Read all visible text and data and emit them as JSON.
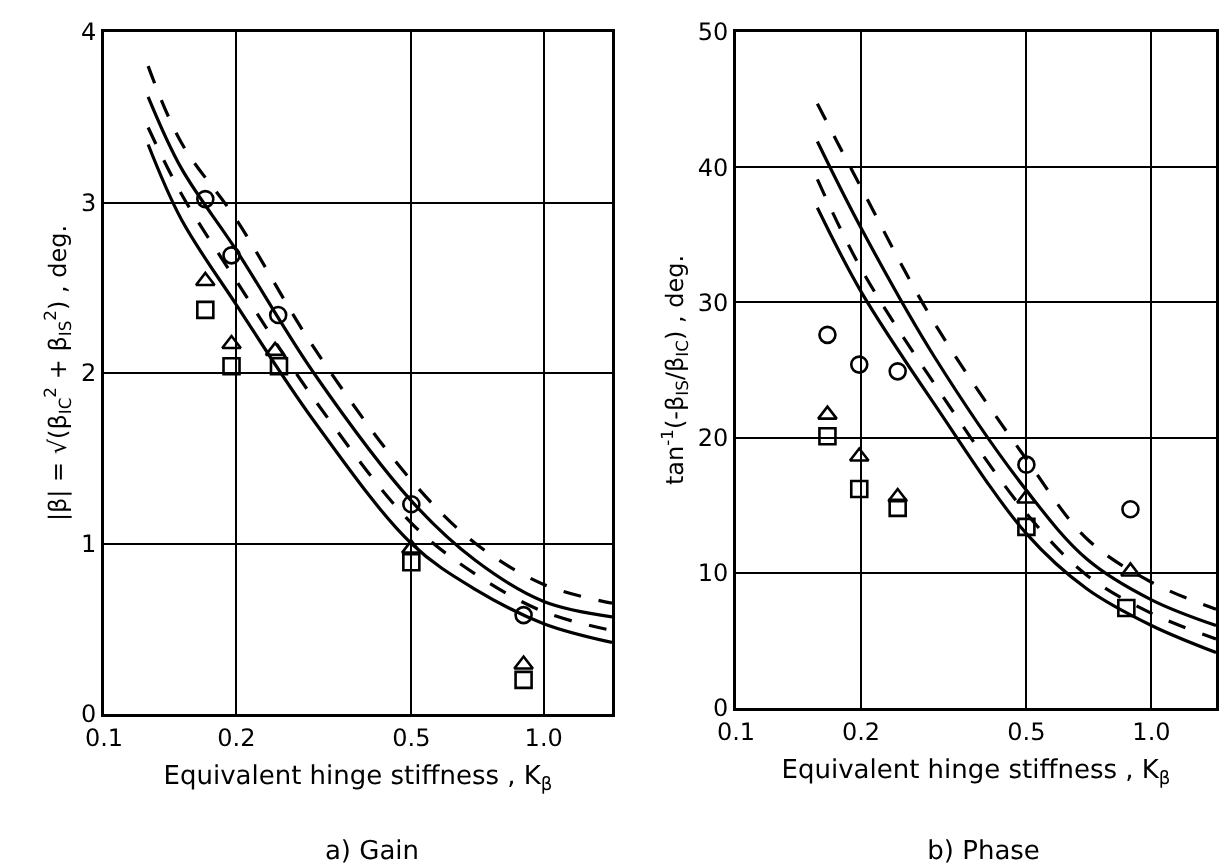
{
  "chart_data": [
    {
      "type": "line",
      "title": "a) Gain",
      "xlabel": "Equivalent hinge stiffness , K$_{β}$",
      "ylabel": "|β| = √(β$_{IC}$$^{2}$ + β$_{IS}$$^{2}$) , deg.",
      "log": "x",
      "grid": true,
      "xlim": [
        0.1,
        1.43
      ],
      "xticks": [
        0.1,
        0.2,
        0.5,
        {
          "value": 1,
          "label": "1.0"
        }
      ],
      "ylim": [
        0,
        4
      ],
      "yticks": [
        0,
        1,
        2,
        3,
        4
      ],
      "series": [
        {
          "type": "line",
          "line_style": "dashed",
          "color": "#000000",
          "x": [
            0.126,
            0.15,
            0.2,
            0.3,
            0.5,
            0.7,
            1.0,
            1.43
          ],
          "values": [
            3.8,
            3.35,
            2.9,
            2.15,
            1.37,
            1.0,
            0.76,
            0.65
          ]
        },
        {
          "type": "line",
          "line_style": "solid",
          "color": "#000000",
          "x": [
            0.126,
            0.15,
            0.2,
            0.3,
            0.5,
            0.7,
            1.0,
            1.43
          ],
          "values": [
            3.62,
            3.2,
            2.72,
            2.0,
            1.25,
            0.9,
            0.66,
            0.57
          ]
        },
        {
          "type": "line",
          "line_style": "dashed",
          "color": "#000000",
          "x": [
            0.126,
            0.15,
            0.2,
            0.3,
            0.5,
            0.7,
            1.0,
            1.43
          ],
          "values": [
            3.44,
            3.05,
            2.54,
            1.85,
            1.12,
            0.82,
            0.6,
            0.49
          ]
        },
        {
          "type": "line",
          "line_style": "solid",
          "color": "#000000",
          "x": [
            0.126,
            0.15,
            0.2,
            0.3,
            0.5,
            0.7,
            1.0,
            1.43
          ],
          "values": [
            3.34,
            2.9,
            2.4,
            1.72,
            1.0,
            0.73,
            0.53,
            0.42
          ]
        },
        {
          "type": "scatter",
          "marker": "circle",
          "color": "#000000",
          "x": [
            0.17,
            0.195,
            0.249,
            0.5,
            0.9
          ],
          "values": [
            3.02,
            2.69,
            2.34,
            1.23,
            0.58
          ]
        },
        {
          "type": "scatter",
          "marker": "triangle",
          "color": "#000000",
          "x": [
            0.17,
            0.195,
            0.245,
            0.5,
            0.9
          ],
          "values": [
            2.54,
            2.17,
            2.13,
            0.97,
            0.29
          ]
        },
        {
          "type": "scatter",
          "marker": "square",
          "color": "#000000",
          "x": [
            0.17,
            0.195,
            0.25,
            0.5,
            0.9
          ],
          "values": [
            2.37,
            2.04,
            2.04,
            0.89,
            0.2
          ]
        }
      ]
    },
    {
      "type": "line",
      "title": "b) Phase",
      "xlabel": "Equivalent hinge stiffness , K$_{β}$",
      "ylabel": "tan$^{-1}$(-β$_{IS}$/β$_{IC}$) , deg.",
      "log": "x",
      "grid": true,
      "xlim": [
        0.1,
        1.43
      ],
      "xticks": [
        0.1,
        0.2,
        0.5,
        {
          "value": 1,
          "label": "1.0"
        }
      ],
      "ylim": [
        0,
        50
      ],
      "yticks": [
        0,
        10,
        20,
        30,
        40,
        50
      ],
      "series": [
        {
          "type": "line",
          "line_style": "dashed",
          "color": "#000000",
          "x": [
            0.157,
            0.2,
            0.3,
            0.5,
            0.7,
            1.0,
            1.43
          ],
          "values": [
            44.7,
            38.5,
            28.5,
            18.4,
            12.5,
            9.3,
            7.3
          ]
        },
        {
          "type": "line",
          "line_style": "solid",
          "color": "#000000",
          "x": [
            0.157,
            0.2,
            0.3,
            0.5,
            0.7,
            1.0,
            1.43
          ],
          "values": [
            41.9,
            35.5,
            26.0,
            16.1,
            11.0,
            8.0,
            6.1
          ]
        },
        {
          "type": "line",
          "line_style": "dashed",
          "color": "#000000",
          "x": [
            0.157,
            0.2,
            0.3,
            0.5,
            0.7,
            1.0,
            1.43
          ],
          "values": [
            39.1,
            32.5,
            24.0,
            14.4,
            9.8,
            7.0,
            5.1
          ]
        },
        {
          "type": "line",
          "line_style": "solid",
          "color": "#000000",
          "x": [
            0.157,
            0.2,
            0.3,
            0.5,
            0.7,
            1.0,
            1.43
          ],
          "values": [
            37.0,
            30.8,
            22.5,
            12.9,
            8.8,
            6.1,
            4.1
          ]
        },
        {
          "type": "scatter",
          "marker": "circle",
          "color": "#000000",
          "x": [
            0.166,
            0.198,
            0.245,
            0.5,
            0.89
          ],
          "values": [
            27.6,
            25.4,
            24.9,
            18.0,
            14.7
          ]
        },
        {
          "type": "scatter",
          "marker": "triangle",
          "color": "#000000",
          "x": [
            0.166,
            0.198,
            0.245,
            0.5,
            0.89
          ],
          "values": [
            21.7,
            18.6,
            15.6,
            15.5,
            10.1
          ]
        },
        {
          "type": "scatter",
          "marker": "square",
          "color": "#000000",
          "x": [
            0.166,
            0.198,
            0.245,
            0.5,
            0.87
          ],
          "values": [
            20.1,
            16.2,
            14.8,
            13.4,
            7.4
          ]
        }
      ]
    }
  ]
}
